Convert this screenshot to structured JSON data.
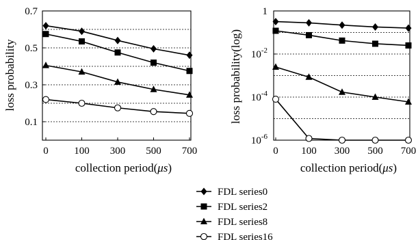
{
  "legend": {
    "items": [
      {
        "label": "FDL series0",
        "marker": "diamond"
      },
      {
        "label": "FDL series2",
        "marker": "square"
      },
      {
        "label": "FDL series8",
        "marker": "triangle"
      },
      {
        "label": "FDL series16",
        "marker": "open-circle"
      }
    ]
  },
  "chart_data": [
    {
      "type": "line",
      "xlabel": "collection period(μs)",
      "xlabel_parts": {
        "prefix": "collection period(",
        "unit": "μs",
        "suffix": ")"
      },
      "ylabel": "loss probability",
      "categories": [
        "0",
        "100",
        "300",
        "500",
        "700"
      ],
      "yscale": "linear",
      "ylim": [
        0.0,
        0.7
      ],
      "ytick_values": [
        0.1,
        0.3,
        0.5,
        0.7
      ],
      "ytick_labels": [
        "0.1",
        "0.3",
        "0.5",
        "0.7"
      ],
      "grid_y": [
        0.1,
        0.2,
        0.3,
        0.4,
        0.5,
        0.6
      ],
      "series": [
        {
          "name": "FDL series0",
          "marker": "diamond",
          "values": [
            0.62,
            0.59,
            0.54,
            0.495,
            0.46
          ]
        },
        {
          "name": "FDL series2",
          "marker": "square",
          "values": [
            0.575,
            0.535,
            0.475,
            0.42,
            0.375
          ]
        },
        {
          "name": "FDL series8",
          "marker": "triangle",
          "values": [
            0.405,
            0.37,
            0.315,
            0.275,
            0.245
          ]
        },
        {
          "name": "FDL series16",
          "marker": "open-circle",
          "values": [
            0.22,
            0.2,
            0.175,
            0.155,
            0.145
          ]
        }
      ]
    },
    {
      "type": "line",
      "xlabel": "collection period(μs)",
      "xlabel_parts": {
        "prefix": "collection period(",
        "unit": "μs",
        "suffix": ")"
      },
      "ylabel": "loss probability(log)",
      "categories": [
        "0",
        "100",
        "300",
        "500",
        "700"
      ],
      "yscale": "log",
      "ylim": [
        1e-06,
        1
      ],
      "ytick_values": [
        1,
        0.01,
        0.0001,
        1e-06
      ],
      "ytick_labels": [
        {
          "base": "1",
          "exp": ""
        },
        {
          "base": "10",
          "exp": "-2"
        },
        {
          "base": "10",
          "exp": "-4"
        },
        {
          "base": "10",
          "exp": "-6"
        }
      ],
      "grid_y": [
        0.1,
        0.01,
        0.001,
        0.0001,
        1e-05
      ],
      "series": [
        {
          "name": "FDL series0",
          "marker": "diamond",
          "values": [
            0.32,
            0.28,
            0.22,
            0.18,
            0.16
          ]
        },
        {
          "name": "FDL series2",
          "marker": "square",
          "values": [
            0.12,
            0.075,
            0.042,
            0.03,
            0.025
          ]
        },
        {
          "name": "FDL series8",
          "marker": "triangle",
          "values": [
            0.0025,
            0.00085,
            0.00017,
            0.0001,
            6e-05
          ]
        },
        {
          "name": "FDL series16",
          "marker": "open-circle",
          "values": [
            8e-05,
            1.2e-06,
            1e-06,
            1e-06,
            1e-06
          ]
        }
      ]
    }
  ]
}
